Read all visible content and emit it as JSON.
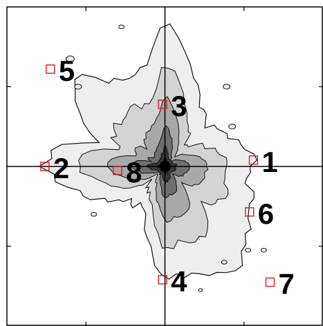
{
  "colors": {
    "background": "#ffffff",
    "contour_lines": "#111111",
    "axis_lines": "#000000",
    "marker": "#e11a1a",
    "fill_levels": [
      "#eeeeee",
      "#d3d3d3",
      "#a8a8a8",
      "#6f6f6f",
      "#3a3a3a",
      "#000000"
    ]
  },
  "chart_data": {
    "type": "contour",
    "title": "",
    "xlabel": "",
    "ylabel": "",
    "xlim": [
      -2,
      2
    ],
    "ylim": [
      -2,
      2
    ],
    "axes": {
      "crosshair_at": [
        0,
        0
      ],
      "tick_labels_shown": false
    },
    "grid": false,
    "legend": "none",
    "contour_levels": 6,
    "markers": [
      {
        "label": "1",
        "x": 1.12,
        "y": 0.08
      },
      {
        "label": "2",
        "x": -1.52,
        "y": 0.0
      },
      {
        "label": "3",
        "x": -0.03,
        "y": 0.78
      },
      {
        "label": "4",
        "x": -0.03,
        "y": -1.42
      },
      {
        "label": "5",
        "x": -1.45,
        "y": 1.22
      },
      {
        "label": "6",
        "x": 1.07,
        "y": -0.57
      },
      {
        "label": "7",
        "x": 1.33,
        "y": -1.45
      },
      {
        "label": "8",
        "x": -0.6,
        "y": -0.05
      }
    ]
  }
}
